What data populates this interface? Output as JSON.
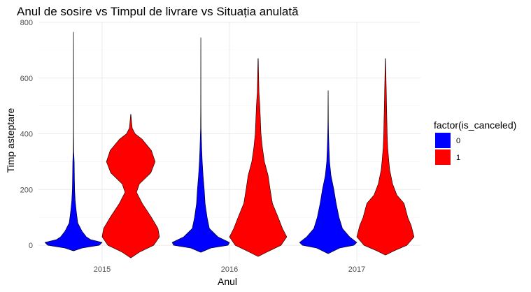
{
  "chart_data": {
    "type": "violin",
    "title": "Anul de sosire vs Timpul de livrare vs Situația anulată",
    "xlabel": "Anul",
    "ylabel": "Timp asteptare",
    "categories": [
      "2015",
      "2016",
      "2017"
    ],
    "ylim": [
      -60,
      800
    ],
    "y_ticks": [
      0,
      200,
      400,
      600,
      800
    ],
    "grid": true,
    "legend": {
      "title": "factor(is_canceled)",
      "position": "right",
      "entries": [
        {
          "label": "0",
          "color": "#0000ff"
        },
        {
          "label": "1",
          "color": "#ff0000"
        }
      ]
    },
    "series": [
      {
        "name": "0",
        "color": "#0000ff",
        "violins": [
          {
            "category": "2015",
            "min": -20,
            "max": 765,
            "profile": [
              [
                -20,
                0.01
              ],
              [
                -10,
                0.3
              ],
              [
                0,
                0.9
              ],
              [
                10,
                1.0
              ],
              [
                20,
                0.6
              ],
              [
                30,
                0.45
              ],
              [
                50,
                0.3
              ],
              [
                80,
                0.15
              ],
              [
                120,
                0.1
              ],
              [
                160,
                0.06
              ],
              [
                200,
                0.04
              ],
              [
                260,
                0.03
              ],
              [
                300,
                0.025
              ],
              [
                335,
                0.01
              ],
              [
                400,
                0.005
              ],
              [
                600,
                0.004
              ],
              [
                765,
                0.002
              ]
            ]
          },
          {
            "category": "2016",
            "min": -25,
            "max": 745,
            "profile": [
              [
                -25,
                0.01
              ],
              [
                -10,
                0.35
              ],
              [
                0,
                0.95
              ],
              [
                10,
                1.0
              ],
              [
                30,
                0.6
              ],
              [
                60,
                0.3
              ],
              [
                100,
                0.22
              ],
              [
                150,
                0.15
              ],
              [
                200,
                0.12
              ],
              [
                250,
                0.08
              ],
              [
                300,
                0.05
              ],
              [
                350,
                0.03
              ],
              [
                420,
                0.01
              ],
              [
                500,
                0.005
              ],
              [
                745,
                0.002
              ]
            ]
          },
          {
            "category": "2017",
            "min": -30,
            "max": 555,
            "profile": [
              [
                -30,
                0.01
              ],
              [
                -10,
                0.4
              ],
              [
                0,
                0.9
              ],
              [
                10,
                1.0
              ],
              [
                30,
                0.75
              ],
              [
                60,
                0.5
              ],
              [
                100,
                0.38
              ],
              [
                150,
                0.28
              ],
              [
                200,
                0.2
              ],
              [
                250,
                0.1
              ],
              [
                300,
                0.05
              ],
              [
                350,
                0.03
              ],
              [
                400,
                0.015
              ],
              [
                450,
                0.008
              ],
              [
                555,
                0.002
              ]
            ]
          }
        ]
      },
      {
        "name": "1",
        "color": "#ff0000",
        "violins": [
          {
            "category": "2015",
            "min": -45,
            "max": 470,
            "profile": [
              [
                -45,
                0.01
              ],
              [
                -25,
                0.3
              ],
              [
                0,
                0.8
              ],
              [
                30,
                1.0
              ],
              [
                60,
                0.95
              ],
              [
                100,
                0.72
              ],
              [
                150,
                0.4
              ],
              [
                190,
                0.2
              ],
              [
                220,
                0.3
              ],
              [
                260,
                0.7
              ],
              [
                300,
                0.85
              ],
              [
                340,
                0.72
              ],
              [
                380,
                0.4
              ],
              [
                400,
                0.15
              ],
              [
                420,
                0.05
              ],
              [
                440,
                0.03
              ],
              [
                470,
                0.005
              ]
            ]
          },
          {
            "category": "2016",
            "min": -40,
            "max": 670,
            "profile": [
              [
                -40,
                0.01
              ],
              [
                -25,
                0.3
              ],
              [
                0,
                0.8
              ],
              [
                30,
                1.0
              ],
              [
                60,
                0.85
              ],
              [
                100,
                0.7
              ],
              [
                150,
                0.5
              ],
              [
                200,
                0.42
              ],
              [
                250,
                0.35
              ],
              [
                300,
                0.22
              ],
              [
                350,
                0.15
              ],
              [
                400,
                0.1
              ],
              [
                450,
                0.08
              ],
              [
                500,
                0.06
              ],
              [
                550,
                0.03
              ],
              [
                600,
                0.02
              ],
              [
                670,
                0.005
              ]
            ]
          },
          {
            "category": "2017",
            "min": -35,
            "max": 670,
            "profile": [
              [
                -35,
                0.01
              ],
              [
                -20,
                0.3
              ],
              [
                0,
                0.75
              ],
              [
                30,
                1.0
              ],
              [
                70,
                0.9
              ],
              [
                100,
                0.78
              ],
              [
                150,
                0.65
              ],
              [
                180,
                0.4
              ],
              [
                220,
                0.25
              ],
              [
                270,
                0.15
              ],
              [
                300,
                0.12
              ],
              [
                350,
                0.08
              ],
              [
                400,
                0.06
              ],
              [
                450,
                0.05
              ],
              [
                500,
                0.04
              ],
              [
                550,
                0.03
              ],
              [
                600,
                0.02
              ],
              [
                670,
                0.005
              ]
            ]
          }
        ]
      }
    ]
  }
}
